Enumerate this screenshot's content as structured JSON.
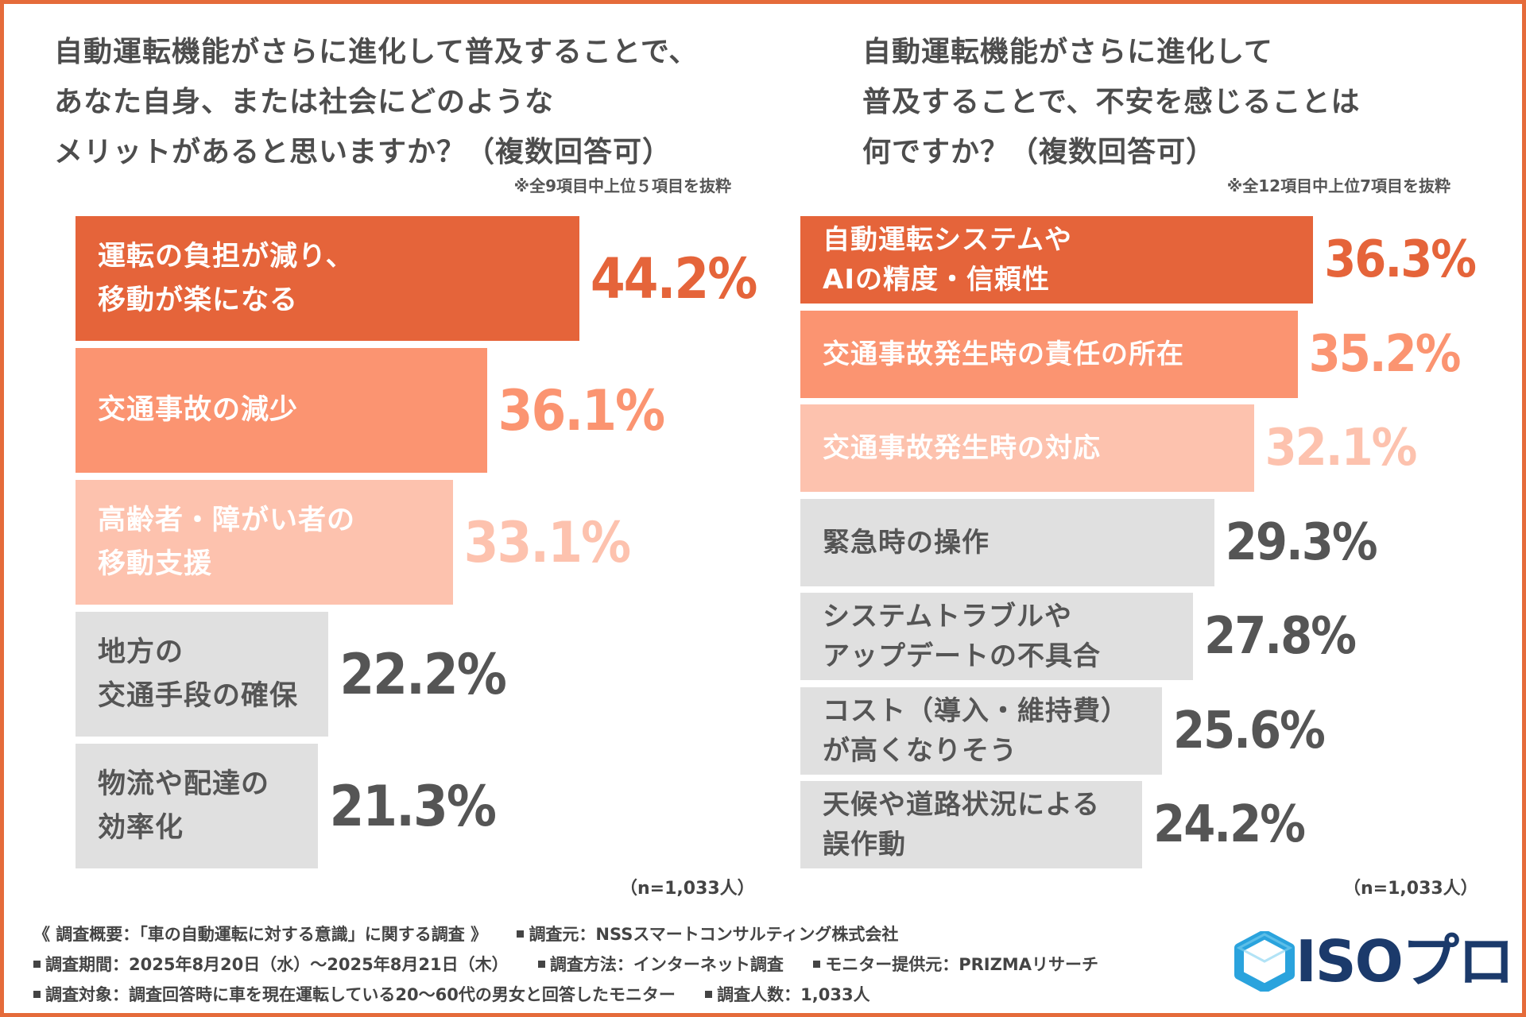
{
  "colors": {
    "border": "#e56b3a",
    "rank1": "#e5643a",
    "rank2": "#fb9471",
    "rank3": "#fdc2ae",
    "rest": "#e0e0e0",
    "value_rest": "#555555",
    "label_light": "#ffffff",
    "label_dark": "#555555"
  },
  "left": {
    "question_lines": [
      "自動運転機能がさらに進化して普及することで、",
      "あなた自身、または社会にどのような",
      "メリットがあると思いますか？（複数回答可）"
    ],
    "note": "※全9項目中上位５項目を抜粋",
    "n_note": "（n=1,033人）"
  },
  "right": {
    "question_lines": [
      "自動運転機能がさらに進化して",
      "普及することで、不安を感じることは",
      "何ですか？（複数回答可）"
    ],
    "note": "※全12項目中上位7項目を抜粋",
    "n_note": "（n=1,033人）"
  },
  "chart_data": [
    {
      "type": "bar",
      "orientation": "horizontal",
      "title": "自動運転機能がさらに進化して普及することで、あなた自身、または社会にどのようなメリットがあると思いますか？（複数回答可）",
      "categories": [
        "運転の負担が減り、\n移動が楽になる",
        "交通事故の減少",
        "高齢者・障がい者の\n移動支援",
        "地方の\n交通手段の確保",
        "物流や配達の\n効率化"
      ],
      "values": [
        44.2,
        36.1,
        33.1,
        22.2,
        21.3
      ],
      "labels": [
        "44.2%",
        "36.1%",
        "33.1%",
        "22.2%",
        "21.3%"
      ],
      "unit": "%",
      "xlim": [
        0,
        50
      ]
    },
    {
      "type": "bar",
      "orientation": "horizontal",
      "title": "自動運転機能がさらに進化して普及することで、不安を感じることは何ですか？（複数回答可）",
      "categories": [
        "自動運転システムや\nAIの精度・信頼性",
        "交通事故発生時の責任の所在",
        "交通事故発生時の対応",
        "緊急時の操作",
        "システムトラブルや\nアップデートの不具合",
        "コスト（導入・維持費）\nが高くなりそう",
        "天候や道路状況による\n誤作動"
      ],
      "values": [
        36.3,
        35.2,
        32.1,
        29.3,
        27.8,
        25.6,
        24.2
      ],
      "labels": [
        "36.3%",
        "35.2%",
        "32.1%",
        "29.3%",
        "27.8%",
        "25.6%",
        "24.2%"
      ],
      "unit": "%",
      "xlim": [
        0,
        40
      ]
    }
  ],
  "footer": {
    "overview": "《 調査概要：「車の自動運転に対する意識」に関する調査 》",
    "source": "調査元：NSSスマートコンサルティング株式会社",
    "period": "調査期間：2025年8月20日（水）～2025年8月21日（木）",
    "method": "調査方法：インターネット調査",
    "provider": "モニター提供元：PRIZMAリサーチ",
    "target": "調査対象：調査回答時に車を現在運転している20～60代の男女と回答したモニター",
    "count": "調査人数：1,033人"
  },
  "logo": {
    "text": "ISOプロ",
    "icon": "hexagon-icon",
    "color": "#1b3a6b",
    "icon_color": "#2aa3dd"
  }
}
